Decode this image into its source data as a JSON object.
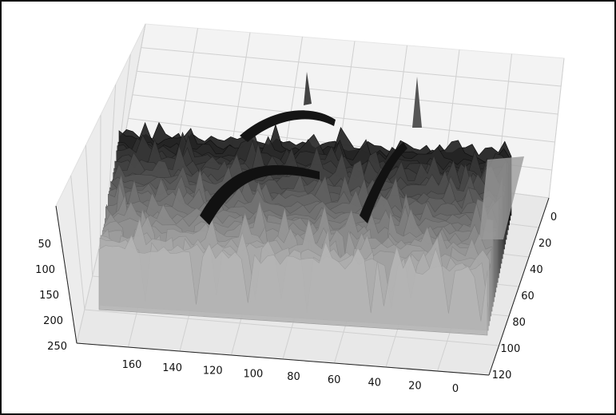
{
  "chart_data": {
    "type": "surface",
    "title": "",
    "colormap": "gray",
    "grid": true,
    "x_axis": {
      "label": "",
      "ticks": [
        "0",
        "20",
        "40",
        "60",
        "80",
        "100",
        "120",
        "140",
        "160"
      ],
      "range": [
        0,
        170
      ]
    },
    "y_axis": {
      "label": "",
      "ticks": [
        "0",
        "20",
        "40",
        "60",
        "80",
        "100",
        "120"
      ],
      "range": [
        0,
        125
      ]
    },
    "z_axis": {
      "label": "",
      "ticks": [
        "50",
        "100",
        "150",
        "200",
        "250"
      ],
      "range": [
        0,
        255
      ],
      "inverted": true
    }
  }
}
